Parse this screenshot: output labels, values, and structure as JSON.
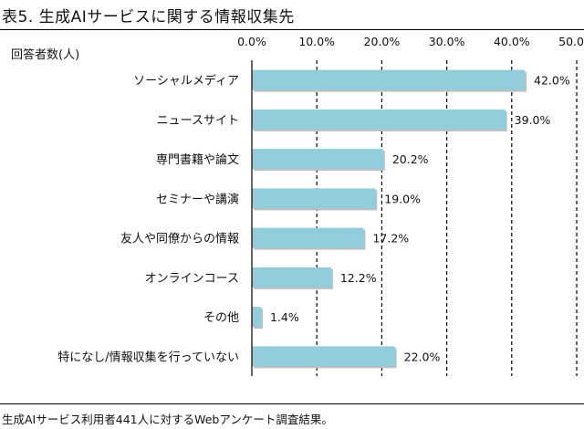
{
  "figure": {
    "title": "表5. 生成AIサービスに関する情報収集先",
    "footnote": "生成AIサービス利用者441人に対するWebアンケート調査結果。"
  },
  "chart_data": {
    "type": "bar",
    "orientation": "horizontal",
    "title": "",
    "ylabel": "回答者数(人)",
    "xlabel": "",
    "xlim": [
      0,
      50
    ],
    "xticks": [
      "0.0%",
      "10.0%",
      "20.0%",
      "30.0%",
      "40.0%",
      "50.0%"
    ],
    "grid": "vertical dashed",
    "categories": [
      "ソーシャルメディア",
      "ニュースサイト",
      "専門書籍や論文",
      "セミナーや講演",
      "友人や同僚からの情報",
      "オンラインコース",
      "その他",
      "特になし/情報収集を行っていない"
    ],
    "values": [
      42.0,
      39.0,
      20.2,
      19.0,
      17.2,
      12.2,
      1.4,
      22.0
    ],
    "value_labels": [
      "42.0%",
      "39.0%",
      "20.2%",
      "19.0%",
      "17.2%",
      "12.2%",
      "1.4%",
      "22.0%"
    ],
    "bar_color": "#92cddc"
  }
}
